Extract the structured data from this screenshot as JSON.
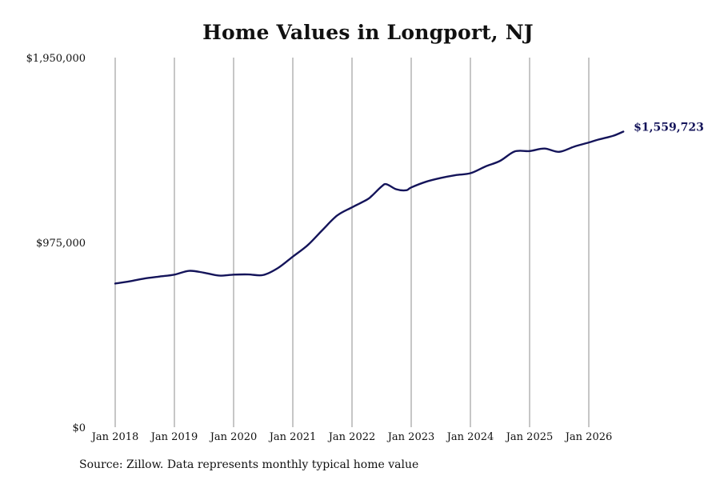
{
  "title": "Home Values in Longport, NJ",
  "source": "Source: Zillow. Data represents monthly typical home value",
  "colors": {
    "line": "#14145a",
    "grid": "#8c8c8c",
    "text": "#111111"
  },
  "chart_data": {
    "type": "line",
    "title": "Home Values in Longport, NJ",
    "xlabel": "",
    "ylabel": "",
    "ylim": [
      0,
      1950000
    ],
    "y_ticks": [
      0,
      975000,
      1950000
    ],
    "y_tick_labels": [
      "$0",
      "$975,000",
      "$1,950,000"
    ],
    "x_ticks": [
      "2018-01",
      "2019-01",
      "2020-01",
      "2021-01",
      "2022-01",
      "2023-01",
      "2024-01",
      "2025-01",
      "2026-01"
    ],
    "x_tick_labels": [
      "Jan 2018",
      "Jan 2019",
      "Jan 2020",
      "Jan 2021",
      "Jan 2022",
      "Jan 2023",
      "Jan 2024",
      "Jan 2025",
      "Jan 2026"
    ],
    "grid": "vertical lines at x ticks",
    "end_label": "$1,559,723",
    "series": [
      {
        "x": [
          "2018-01",
          "2018-04",
          "2018-07",
          "2018-10",
          "2019-01",
          "2019-04",
          "2019-07",
          "2019-10",
          "2020-01",
          "2020-04",
          "2020-07",
          "2020-10",
          "2021-01",
          "2021-04",
          "2021-07",
          "2021-10",
          "2022-01",
          "2022-04",
          "2022-05",
          "2022-07",
          "2022-08",
          "2022-10",
          "2022-12",
          "2023-01",
          "2023-04",
          "2023-07",
          "2023-10",
          "2024-01",
          "2024-04",
          "2024-07",
          "2024-10",
          "2025-01",
          "2025-04",
          "2025-07",
          "2025-10",
          "2026-01",
          "2026-03",
          "2026-06",
          "2026-08"
        ],
        "values": [
          758000,
          770000,
          785000,
          795000,
          805000,
          825000,
          815000,
          800000,
          805000,
          806000,
          803000,
          840000,
          900000,
          960000,
          1040000,
          1117000,
          1160000,
          1200000,
          1220000,
          1270000,
          1282000,
          1255000,
          1250000,
          1265000,
          1295000,
          1315000,
          1330000,
          1340000,
          1375000,
          1405000,
          1455000,
          1457000,
          1470000,
          1453000,
          1480000,
          1502000,
          1518000,
          1538000,
          1559723
        ]
      }
    ]
  }
}
